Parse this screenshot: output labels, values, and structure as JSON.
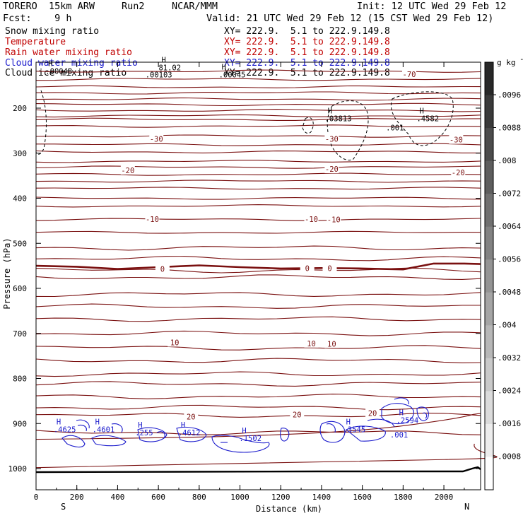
{
  "header": {
    "model": "TORERO  15km ARW",
    "run": "Run2",
    "center": "NCAR/MMM",
    "init": "Init: 12 UTC Wed 29 Feb 12",
    "fcst": "Fcst:    9 h",
    "valid": "Valid: 21 UTC Wed 29 Feb 12 (15 CST Wed 29 Feb 12)"
  },
  "legend": [
    {
      "label": "Snow mixing ratio",
      "xy": "XY= 222.9.  5.1 to 222.9.149.8",
      "color": "#000000"
    },
    {
      "label": "Temperature",
      "xy": "XY= 222.9.  5.1 to 222.9.149.8",
      "color": "#c00000"
    },
    {
      "label": "Rain water mixing ratio",
      "xy": "XY= 222.9.  5.1 to 222.9.149.8",
      "color": "#c00000"
    },
    {
      "label": "Cloud water mixing ratio",
      "xy": "XY= 222.9.  5.1 to 222.9.149.8",
      "color": "#1a1acc"
    },
    {
      "label": "Cloud ice mixing ratio",
      "xy": "XY= 222.9.  5.1 to 222.9.149.8",
      "color": "#000000"
    }
  ],
  "colors": {
    "temperature": "#7a1010",
    "cloud_water": "#1a1acc",
    "cloud_ice": "#000000",
    "ground": "#000000"
  },
  "chart_data": {
    "type": "cross-section",
    "xlabel": "Distance (km)",
    "ylabel": "Pressure (hPa)",
    "xlim": [
      0,
      2180
    ],
    "ylim": [
      1050,
      100
    ],
    "xticks": [
      0,
      200,
      400,
      600,
      800,
      1000,
      1200,
      1400,
      1600,
      1800,
      2000
    ],
    "yticks": [
      200,
      300,
      400,
      500,
      600,
      700,
      800,
      900,
      1000
    ],
    "x_end_labels": {
      "left": "S",
      "right": "N"
    },
    "colorbar": {
      "unit": "g kg",
      "unit_exp": "-1",
      "ticks": [
        ".0096",
        ".0088",
        ".008",
        ".0072",
        ".0064",
        ".0056",
        ".0048",
        ".004",
        ".0032",
        ".0024",
        ".0016",
        ".0008"
      ]
    },
    "isotherm_labels": [
      {
        "value": "-70",
        "x": 1830,
        "p": 125
      },
      {
        "value": "-30",
        "x": 590,
        "p": 268
      },
      {
        "value": "-30",
        "x": 1450,
        "p": 268
      },
      {
        "value": "-30",
        "x": 2060,
        "p": 270
      },
      {
        "value": "-20",
        "x": 450,
        "p": 338
      },
      {
        "value": "-20",
        "x": 1450,
        "p": 335
      },
      {
        "value": "-20",
        "x": 2070,
        "p": 343
      },
      {
        "value": "-10",
        "x": 570,
        "p": 446
      },
      {
        "value": "-10",
        "x": 1350,
        "p": 446
      },
      {
        "value": "-10",
        "x": 1460,
        "p": 447
      },
      {
        "value": "0",
        "x": 620,
        "p": 557
      },
      {
        "value": "0",
        "x": 1330,
        "p": 555
      },
      {
        "value": "0",
        "x": 1440,
        "p": 555
      },
      {
        "value": "10",
        "x": 680,
        "p": 720
      },
      {
        "value": "10",
        "x": 1350,
        "p": 722
      },
      {
        "value": "10",
        "x": 1450,
        "p": 723
      },
      {
        "value": "20",
        "x": 760,
        "p": 885
      },
      {
        "value": "20",
        "x": 1280,
        "p": 880
      },
      {
        "value": "20",
        "x": 1650,
        "p": 877
      }
    ],
    "maxima_labels": [
      {
        "letter": "H",
        "value": ".00048",
        "x": 60,
        "p": 110
      },
      {
        "letter": "H",
        "value": "81.02",
        "x": 615,
        "p": 102
      },
      {
        "letter": "",
        "value": ".00103",
        "x": 550,
        "p": 118
      },
      {
        "letter": "H",
        "value": ".00045",
        "x": 910,
        "p": 118
      },
      {
        "letter": "H",
        "value": ".03813",
        "x": 1430,
        "p": 215
      },
      {
        "letter": "",
        "value": ".001",
        "x": 1730,
        "p": 235
      },
      {
        "letter": "H",
        "value": ".4582",
        "x": 1880,
        "p": 215
      }
    ],
    "cloud_water_labels": [
      {
        "letter": "H",
        "value": ".4625",
        "x": 100,
        "p": 905
      },
      {
        "letter": "H",
        "value": ".4601",
        "x": 290,
        "p": 905
      },
      {
        "letter": "H",
        "value": ".255",
        "x": 500,
        "p": 912
      },
      {
        "letter": "H",
        "value": ".4612",
        "x": 710,
        "p": 912
      },
      {
        "letter": "H",
        "value": ".1502",
        "x": 1010,
        "p": 925
      },
      {
        "letter": "H",
        "value": ".3545",
        "x": 1520,
        "p": 905
      },
      {
        "letter": "",
        "value": ".001",
        "x": 1750,
        "p": 917
      },
      {
        "letter": "H",
        "value": ".2594",
        "x": 1780,
        "p": 885
      }
    ]
  }
}
